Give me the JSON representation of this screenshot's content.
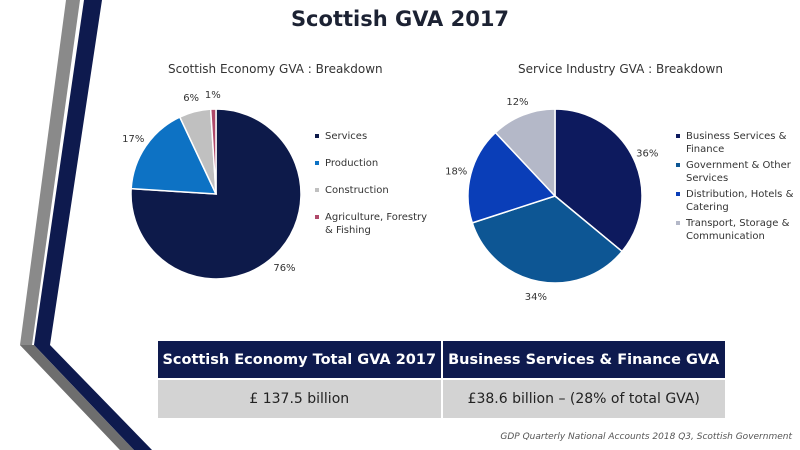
{
  "slide": {
    "title": "Scottish GVA 2017"
  },
  "chart_data": [
    {
      "type": "pie",
      "title": "Scottish Economy GVA : Breakdown",
      "slices": [
        {
          "label": "Services",
          "value": 76,
          "display": "76%",
          "color": "#0d1a4a"
        },
        {
          "label": "Production",
          "value": 17,
          "display": "17%",
          "color": "#0d72c4"
        },
        {
          "label": "Construction",
          "value": 6,
          "display": "6%",
          "color": "#c0c0c0"
        },
        {
          "label": "Agriculture, Forestry & Fishing",
          "value": 1,
          "display": "1%",
          "color": "#b04a6a"
        }
      ],
      "legend": "right"
    },
    {
      "type": "pie",
      "title": "Service Industry GVA : Breakdown",
      "slices": [
        {
          "label": "Business Services & Finance",
          "value": 36,
          "display": "36%",
          "color": "#0d1a5e"
        },
        {
          "label": "Government & Other Services",
          "value": 34,
          "display": "34%",
          "color": "#0d5694"
        },
        {
          "label": "Distribution, Hotels & Catering",
          "value": 18,
          "display": "18%",
          "color": "#0a3eb8"
        },
        {
          "label": "Transport, Storage & Communication",
          "value": 12,
          "display": "12%",
          "color": "#b4b8c8"
        }
      ],
      "legend": "right"
    }
  ],
  "summary_table": {
    "headers": [
      "Scottish Economy Total GVA 2017",
      "Business Services & Finance GVA"
    ],
    "values": [
      "£ 137.5 billion",
      "£38.6 billion – (28% of total GVA)"
    ]
  },
  "source": "GDP Quarterly National Accounts 2018 Q3, Scottish Government"
}
